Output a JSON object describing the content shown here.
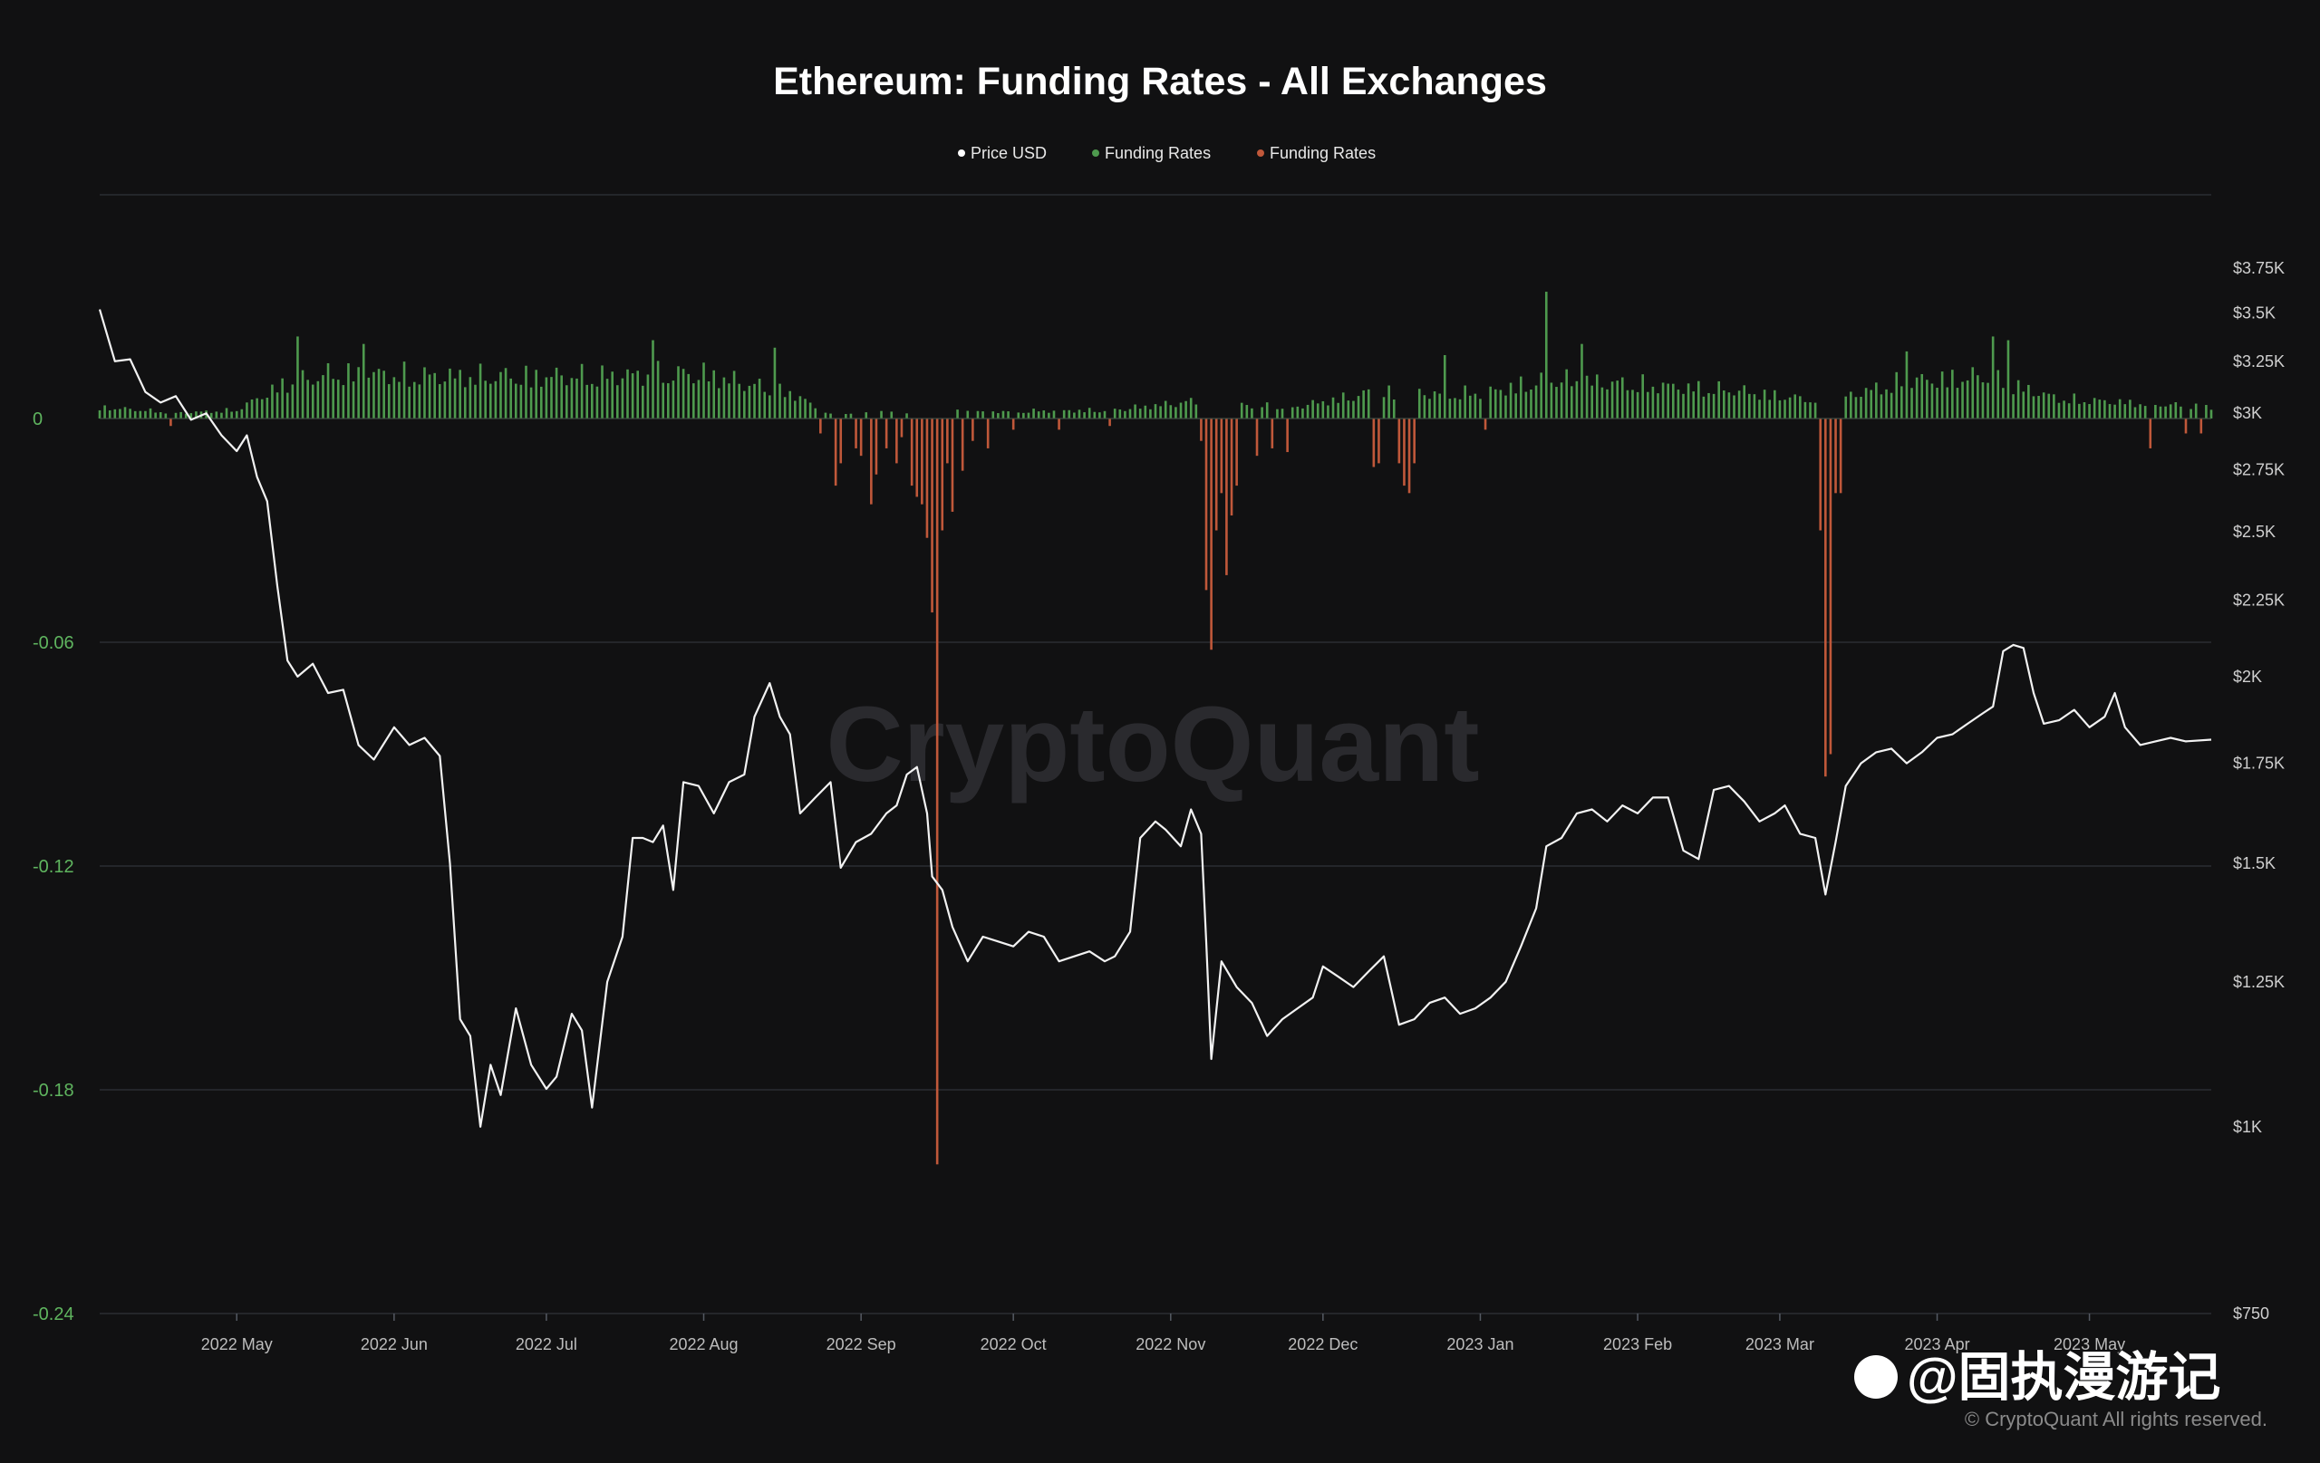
{
  "colors": {
    "background": "#111112",
    "price_line": "#f2f2f2",
    "funding_positive": "#4e9a4e",
    "funding_negative": "#c0583a",
    "gridline": "#2b2d33",
    "left_axis_text": "#5fb55f"
  },
  "watermark": "CryptoQuant",
  "copyright": "© CryptoQuant All rights reserved.",
  "overlay_handle": "@固执漫游记",
  "chart_data": {
    "type": "bar+line",
    "title": "Ethereum: Funding Rates - All Exchanges",
    "legend": [
      {
        "label": "Price USD",
        "color": "#ffffff"
      },
      {
        "label": "Funding Rates",
        "color": "#4e9a4e"
      },
      {
        "label": "Funding Rates",
        "color": "#c0583a"
      }
    ],
    "legend_position": "top-center",
    "x_range": [
      "2022-04-04",
      "2023-05-25"
    ],
    "x_ticks": [
      {
        "date": "2022-05-01",
        "label": "2022 May"
      },
      {
        "date": "2022-06-01",
        "label": "2022 Jun"
      },
      {
        "date": "2022-07-01",
        "label": "2022 Jul"
      },
      {
        "date": "2022-08-01",
        "label": "2022 Aug"
      },
      {
        "date": "2022-09-01",
        "label": "2022 Sep"
      },
      {
        "date": "2022-10-01",
        "label": "2022 Oct"
      },
      {
        "date": "2022-11-01",
        "label": "2022 Nov"
      },
      {
        "date": "2022-12-01",
        "label": "2022 Dec"
      },
      {
        "date": "2023-01-01",
        "label": "2023 Jan"
      },
      {
        "date": "2023-02-01",
        "label": "2023 Feb"
      },
      {
        "date": "2023-03-01",
        "label": "2023 Mar"
      },
      {
        "date": "2023-04-01",
        "label": "2023 Apr"
      },
      {
        "date": "2023-05-01",
        "label": "2023 May"
      }
    ],
    "left_axis": {
      "range": [
        -0.24,
        0.06
      ],
      "ticks": [
        {
          "value": 0,
          "label": "0"
        },
        {
          "value": -0.06,
          "label": "-0.06"
        },
        {
          "value": -0.12,
          "label": "-0.12"
        },
        {
          "value": -0.18,
          "label": "-0.18"
        },
        {
          "value": -0.24,
          "label": "-0.24"
        }
      ],
      "grid": true
    },
    "right_axis": {
      "scale": "log",
      "range": [
        750,
        4200
      ],
      "ticks": [
        {
          "value": 3750,
          "label": "$3.75K"
        },
        {
          "value": 3500,
          "label": "$3.5K"
        },
        {
          "value": 3250,
          "label": "$3.25K"
        },
        {
          "value": 3000,
          "label": "$3K"
        },
        {
          "value": 2750,
          "label": "$2.75K"
        },
        {
          "value": 2500,
          "label": "$2.5K"
        },
        {
          "value": 2250,
          "label": "$2.25K"
        },
        {
          "value": 2000,
          "label": "$2K"
        },
        {
          "value": 1750,
          "label": "$1.75K"
        },
        {
          "value": 1500,
          "label": "$1.5K"
        },
        {
          "value": 1250,
          "label": "$1.25K"
        },
        {
          "value": 1000,
          "label": "$1K"
        },
        {
          "value": 750,
          "label": "$750"
        }
      ]
    },
    "price_usd": {
      "name": "Price USD",
      "points": [
        [
          "2022-04-04",
          3520
        ],
        [
          "2022-04-07",
          3250
        ],
        [
          "2022-04-10",
          3260
        ],
        [
          "2022-04-13",
          3100
        ],
        [
          "2022-04-16",
          3050
        ],
        [
          "2022-04-19",
          3080
        ],
        [
          "2022-04-22",
          2970
        ],
        [
          "2022-04-25",
          3000
        ],
        [
          "2022-04-28",
          2900
        ],
        [
          "2022-05-01",
          2830
        ],
        [
          "2022-05-03",
          2900
        ],
        [
          "2022-05-05",
          2720
        ],
        [
          "2022-05-07",
          2620
        ],
        [
          "2022-05-09",
          2300
        ],
        [
          "2022-05-11",
          2050
        ],
        [
          "2022-05-13",
          2000
        ],
        [
          "2022-05-16",
          2040
        ],
        [
          "2022-05-19",
          1950
        ],
        [
          "2022-05-22",
          1960
        ],
        [
          "2022-05-25",
          1800
        ],
        [
          "2022-05-28",
          1760
        ],
        [
          "2022-06-01",
          1850
        ],
        [
          "2022-06-04",
          1800
        ],
        [
          "2022-06-07",
          1820
        ],
        [
          "2022-06-10",
          1770
        ],
        [
          "2022-06-12",
          1500
        ],
        [
          "2022-06-14",
          1180
        ],
        [
          "2022-06-16",
          1150
        ],
        [
          "2022-06-18",
          1000
        ],
        [
          "2022-06-20",
          1100
        ],
        [
          "2022-06-22",
          1050
        ],
        [
          "2022-06-25",
          1200
        ],
        [
          "2022-06-28",
          1100
        ],
        [
          "2022-07-01",
          1060
        ],
        [
          "2022-07-03",
          1080
        ],
        [
          "2022-07-06",
          1190
        ],
        [
          "2022-07-08",
          1160
        ],
        [
          "2022-07-10",
          1030
        ],
        [
          "2022-07-13",
          1250
        ],
        [
          "2022-07-16",
          1340
        ],
        [
          "2022-07-18",
          1560
        ],
        [
          "2022-07-20",
          1560
        ],
        [
          "2022-07-22",
          1550
        ],
        [
          "2022-07-24",
          1590
        ],
        [
          "2022-07-26",
          1440
        ],
        [
          "2022-07-28",
          1700
        ],
        [
          "2022-07-31",
          1690
        ],
        [
          "2022-08-03",
          1620
        ],
        [
          "2022-08-06",
          1700
        ],
        [
          "2022-08-09",
          1720
        ],
        [
          "2022-08-11",
          1880
        ],
        [
          "2022-08-14",
          1980
        ],
        [
          "2022-08-16",
          1880
        ],
        [
          "2022-08-18",
          1830
        ],
        [
          "2022-08-20",
          1620
        ],
        [
          "2022-08-23",
          1660
        ],
        [
          "2022-08-26",
          1700
        ],
        [
          "2022-08-28",
          1490
        ],
        [
          "2022-08-31",
          1550
        ],
        [
          "2022-09-03",
          1570
        ],
        [
          "2022-09-06",
          1620
        ],
        [
          "2022-09-08",
          1640
        ],
        [
          "2022-09-10",
          1720
        ],
        [
          "2022-09-12",
          1740
        ],
        [
          "2022-09-14",
          1620
        ],
        [
          "2022-09-15",
          1470
        ],
        [
          "2022-09-17",
          1440
        ],
        [
          "2022-09-19",
          1360
        ],
        [
          "2022-09-22",
          1290
        ],
        [
          "2022-09-25",
          1340
        ],
        [
          "2022-09-28",
          1330
        ],
        [
          "2022-10-01",
          1320
        ],
        [
          "2022-10-04",
          1350
        ],
        [
          "2022-10-07",
          1340
        ],
        [
          "2022-10-10",
          1290
        ],
        [
          "2022-10-13",
          1300
        ],
        [
          "2022-10-16",
          1310
        ],
        [
          "2022-10-19",
          1290
        ],
        [
          "2022-10-21",
          1300
        ],
        [
          "2022-10-24",
          1350
        ],
        [
          "2022-10-26",
          1560
        ],
        [
          "2022-10-29",
          1600
        ],
        [
          "2022-10-31",
          1580
        ],
        [
          "2022-11-03",
          1540
        ],
        [
          "2022-11-05",
          1630
        ],
        [
          "2022-11-07",
          1570
        ],
        [
          "2022-11-08",
          1330
        ],
        [
          "2022-11-09",
          1110
        ],
        [
          "2022-11-11",
          1290
        ],
        [
          "2022-11-14",
          1240
        ],
        [
          "2022-11-17",
          1210
        ],
        [
          "2022-11-20",
          1150
        ],
        [
          "2022-11-23",
          1180
        ],
        [
          "2022-11-26",
          1200
        ],
        [
          "2022-11-29",
          1220
        ],
        [
          "2022-12-01",
          1280
        ],
        [
          "2022-12-04",
          1260
        ],
        [
          "2022-12-07",
          1240
        ],
        [
          "2022-12-10",
          1270
        ],
        [
          "2022-12-13",
          1300
        ],
        [
          "2022-12-16",
          1170
        ],
        [
          "2022-12-19",
          1180
        ],
        [
          "2022-12-22",
          1210
        ],
        [
          "2022-12-25",
          1220
        ],
        [
          "2022-12-28",
          1190
        ],
        [
          "2022-12-31",
          1200
        ],
        [
          "2023-01-03",
          1220
        ],
        [
          "2023-01-06",
          1250
        ],
        [
          "2023-01-09",
          1320
        ],
        [
          "2023-01-12",
          1400
        ],
        [
          "2023-01-14",
          1540
        ],
        [
          "2023-01-17",
          1560
        ],
        [
          "2023-01-20",
          1620
        ],
        [
          "2023-01-23",
          1630
        ],
        [
          "2023-01-26",
          1600
        ],
        [
          "2023-01-29",
          1640
        ],
        [
          "2023-02-01",
          1620
        ],
        [
          "2023-02-04",
          1660
        ],
        [
          "2023-02-07",
          1660
        ],
        [
          "2023-02-10",
          1530
        ],
        [
          "2023-02-13",
          1510
        ],
        [
          "2023-02-16",
          1680
        ],
        [
          "2023-02-19",
          1690
        ],
        [
          "2023-02-22",
          1650
        ],
        [
          "2023-02-25",
          1600
        ],
        [
          "2023-02-28",
          1620
        ],
        [
          "2023-03-02",
          1640
        ],
        [
          "2023-03-05",
          1570
        ],
        [
          "2023-03-08",
          1560
        ],
        [
          "2023-03-10",
          1430
        ],
        [
          "2023-03-12",
          1550
        ],
        [
          "2023-03-14",
          1690
        ],
        [
          "2023-03-17",
          1750
        ],
        [
          "2023-03-20",
          1780
        ],
        [
          "2023-03-23",
          1790
        ],
        [
          "2023-03-26",
          1750
        ],
        [
          "2023-03-29",
          1780
        ],
        [
          "2023-04-01",
          1820
        ],
        [
          "2023-04-04",
          1830
        ],
        [
          "2023-04-07",
          1860
        ],
        [
          "2023-04-10",
          1890
        ],
        [
          "2023-04-12",
          1910
        ],
        [
          "2023-04-14",
          2080
        ],
        [
          "2023-04-16",
          2100
        ],
        [
          "2023-04-18",
          2090
        ],
        [
          "2023-04-20",
          1950
        ],
        [
          "2023-04-22",
          1860
        ],
        [
          "2023-04-25",
          1870
        ],
        [
          "2023-04-28",
          1900
        ],
        [
          "2023-05-01",
          1850
        ],
        [
          "2023-05-04",
          1880
        ],
        [
          "2023-05-06",
          1950
        ],
        [
          "2023-05-08",
          1850
        ],
        [
          "2023-05-11",
          1800
        ],
        [
          "2023-05-14",
          1810
        ],
        [
          "2023-05-17",
          1820
        ],
        [
          "2023-05-20",
          1810
        ],
        [
          "2023-05-25",
          1815
        ]
      ]
    },
    "funding_rates_positive": {
      "name": "Funding Rates",
      "anchors": [
        [
          "2022-04-04",
          0.004
        ],
        [
          "2022-04-20",
          0.002
        ],
        [
          "2022-05-01",
          0.003
        ],
        [
          "2022-05-10",
          0.012
        ],
        [
          "2022-05-20",
          0.016
        ],
        [
          "2022-06-10",
          0.015
        ],
        [
          "2022-07-10",
          0.015
        ],
        [
          "2022-08-01",
          0.016
        ],
        [
          "2022-08-20",
          0.008
        ],
        [
          "2022-08-24",
          0.002
        ],
        [
          "2022-10-20",
          0.003
        ],
        [
          "2022-11-05",
          0.006
        ],
        [
          "2022-11-25",
          0.004
        ],
        [
          "2022-12-10",
          0.009
        ],
        [
          "2023-01-01",
          0.009
        ],
        [
          "2023-01-15",
          0.014
        ],
        [
          "2023-02-01",
          0.012
        ],
        [
          "2023-02-20",
          0.01
        ],
        [
          "2023-03-10",
          0.006
        ],
        [
          "2023-03-25",
          0.013
        ],
        [
          "2023-04-10",
          0.015
        ],
        [
          "2023-04-25",
          0.007
        ],
        [
          "2023-05-25",
          0.004
        ]
      ],
      "spikes": [
        [
          "2022-05-13",
          0.022
        ],
        [
          "2022-05-26",
          0.02
        ],
        [
          "2022-07-22",
          0.021
        ],
        [
          "2022-08-15",
          0.019
        ],
        [
          "2022-12-25",
          0.017
        ],
        [
          "2023-01-14",
          0.034
        ],
        [
          "2023-01-21",
          0.02
        ],
        [
          "2023-03-26",
          0.018
        ],
        [
          "2023-04-12",
          0.022
        ],
        [
          "2023-04-15",
          0.021
        ]
      ]
    },
    "funding_rates_negative": {
      "name": "Funding Rates",
      "spikes": [
        [
          "2022-04-18",
          -0.002
        ],
        [
          "2022-08-24",
          -0.004
        ],
        [
          "2022-08-27",
          -0.018
        ],
        [
          "2022-08-28",
          -0.012
        ],
        [
          "2022-08-31",
          -0.008
        ],
        [
          "2022-09-01",
          -0.01
        ],
        [
          "2022-09-03",
          -0.023
        ],
        [
          "2022-09-04",
          -0.015
        ],
        [
          "2022-09-06",
          -0.008
        ],
        [
          "2022-09-08",
          -0.012
        ],
        [
          "2022-09-09",
          -0.005
        ],
        [
          "2022-09-11",
          -0.018
        ],
        [
          "2022-09-12",
          -0.021
        ],
        [
          "2022-09-13",
          -0.023
        ],
        [
          "2022-09-14",
          -0.032
        ],
        [
          "2022-09-15",
          -0.052
        ],
        [
          "2022-09-16",
          -0.2
        ],
        [
          "2022-09-17",
          -0.03
        ],
        [
          "2022-09-18",
          -0.012
        ],
        [
          "2022-09-19",
          -0.025
        ],
        [
          "2022-09-21",
          -0.014
        ],
        [
          "2022-09-23",
          -0.006
        ],
        [
          "2022-09-26",
          -0.008
        ],
        [
          "2022-10-01",
          -0.003
        ],
        [
          "2022-10-10",
          -0.003
        ],
        [
          "2022-10-20",
          -0.002
        ],
        [
          "2022-11-07",
          -0.006
        ],
        [
          "2022-11-08",
          -0.046
        ],
        [
          "2022-11-09",
          -0.062
        ],
        [
          "2022-11-10",
          -0.03
        ],
        [
          "2022-11-11",
          -0.02
        ],
        [
          "2022-11-12",
          -0.042
        ],
        [
          "2022-11-13",
          -0.026
        ],
        [
          "2022-11-14",
          -0.018
        ],
        [
          "2022-11-18",
          -0.01
        ],
        [
          "2022-11-21",
          -0.008
        ],
        [
          "2022-11-24",
          -0.009
        ],
        [
          "2022-12-11",
          -0.013
        ],
        [
          "2022-12-12",
          -0.012
        ],
        [
          "2022-12-16",
          -0.012
        ],
        [
          "2022-12-17",
          -0.018
        ],
        [
          "2022-12-18",
          -0.02
        ],
        [
          "2022-12-19",
          -0.012
        ],
        [
          "2023-01-02",
          -0.003
        ],
        [
          "2023-03-09",
          -0.03
        ],
        [
          "2023-03-10",
          -0.096
        ],
        [
          "2023-03-11",
          -0.09
        ],
        [
          "2023-03-12",
          -0.02
        ],
        [
          "2023-03-13",
          -0.02
        ],
        [
          "2023-05-13",
          -0.008
        ],
        [
          "2023-05-20",
          -0.004
        ],
        [
          "2023-05-23",
          -0.004
        ]
      ]
    }
  }
}
